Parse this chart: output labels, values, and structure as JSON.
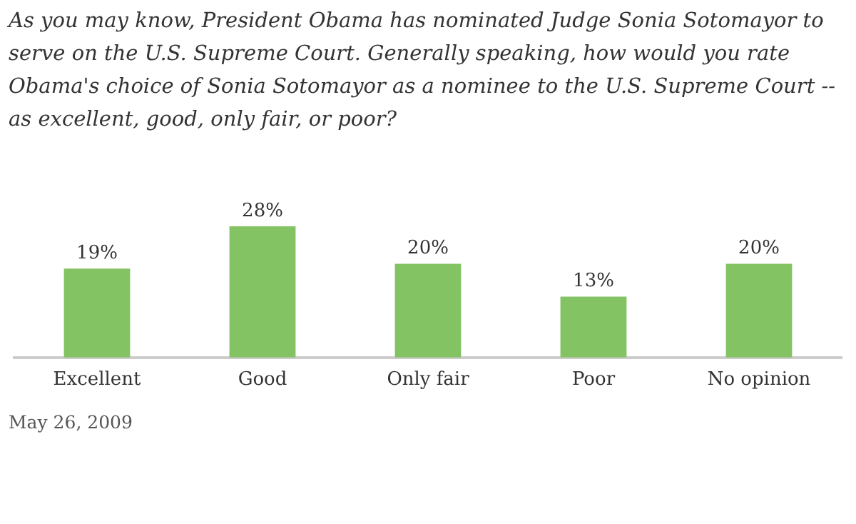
{
  "chart_data": {
    "type": "bar",
    "title": "As you may know, President Obama has nominated Judge Sonia Sotomayor to serve on the U.S. Supreme Court. Generally speaking, how would you rate Obama's choice of Sonia Sotomayor as a nominee to the U.S. Supreme Court -- as excellent, good, only fair, or poor?",
    "categories": [
      "Excellent",
      "Good",
      "Only fair",
      "Poor",
      "No opinion"
    ],
    "values": [
      19,
      28,
      20,
      13,
      20
    ],
    "value_labels": [
      "19%",
      "28%",
      "20%",
      "13%",
      "20%"
    ],
    "color": "#84c364",
    "grid": false,
    "legend": false,
    "annotations": [
      "May 26, 2009"
    ]
  }
}
